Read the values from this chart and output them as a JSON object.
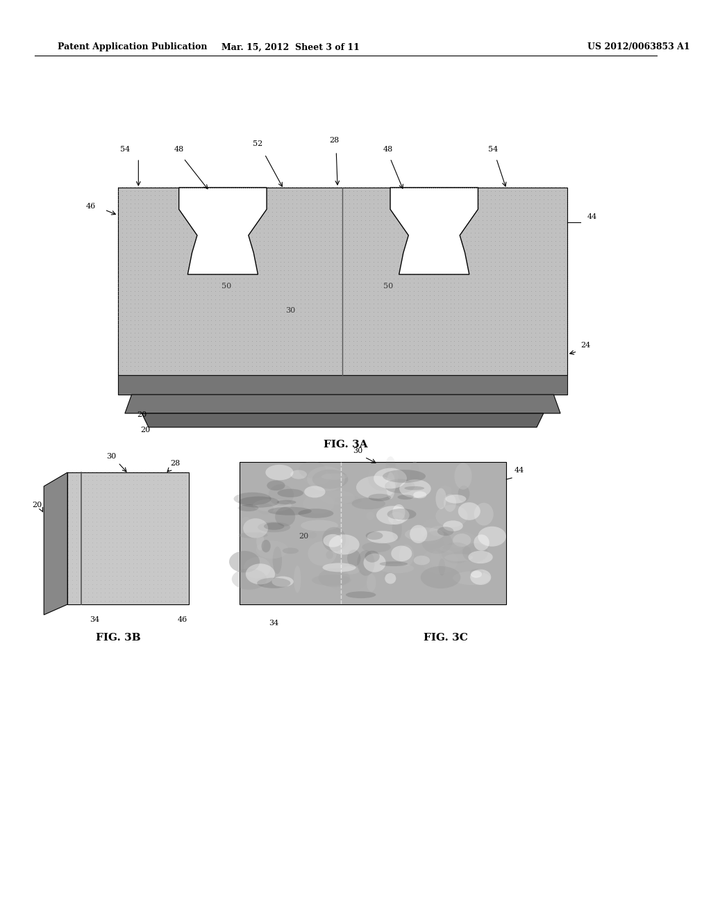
{
  "title_left": "Patent Application Publication",
  "title_mid": "Mar. 15, 2012  Sheet 3 of 11",
  "title_right": "US 2012/0063853 A1",
  "fig3a_label": "FIG. 3A",
  "fig3b_label": "FIG. 3B",
  "fig3c_label": "FIG. 3C",
  "bg_color": "#ffffff",
  "block_color": "#bbbbbb",
  "block_dark": "#888888",
  "block_darker": "#555555",
  "hole_color": "#ffffff",
  "line_color": "#000000",
  "photo_color": "#aaaaaa"
}
